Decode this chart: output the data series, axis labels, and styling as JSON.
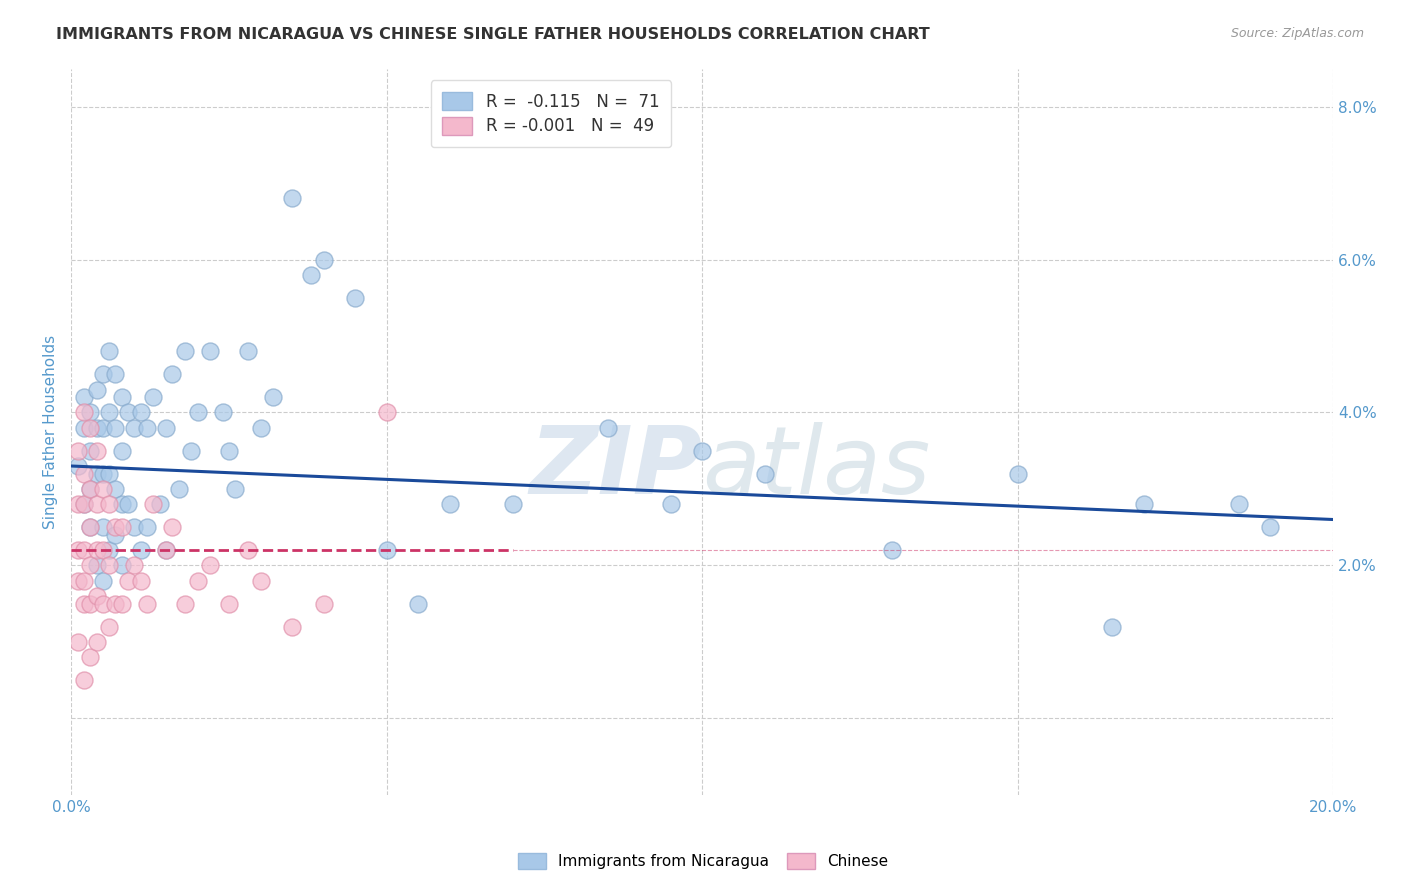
{
  "title": "IMMIGRANTS FROM NICARAGUA VS CHINESE SINGLE FATHER HOUSEHOLDS CORRELATION CHART",
  "source": "Source: ZipAtlas.com",
  "xlabel": "",
  "ylabel": "Single Father Households",
  "xlim": [
    0.0,
    0.2
  ],
  "ylim": [
    -0.01,
    0.085
  ],
  "blue_label": "Immigrants from Nicaragua",
  "pink_label": "Chinese",
  "blue_R": -0.115,
  "blue_N": 71,
  "pink_R": -0.001,
  "pink_N": 49,
  "blue_color": "#a8c8e8",
  "pink_color": "#f4b8cc",
  "blue_edge_color": "#88aacc",
  "pink_edge_color": "#e090aa",
  "blue_line_color": "#1a4a9a",
  "pink_line_color": "#cc3366",
  "background_color": "#ffffff",
  "grid_color": "#cccccc",
  "title_color": "#333333",
  "axis_label_color": "#5599cc",
  "tick_color": "#5599cc",
  "watermark_color": "#c8d8e8",
  "blue_x": [
    0.001,
    0.002,
    0.002,
    0.002,
    0.003,
    0.003,
    0.003,
    0.003,
    0.004,
    0.004,
    0.004,
    0.004,
    0.005,
    0.005,
    0.005,
    0.005,
    0.005,
    0.006,
    0.006,
    0.006,
    0.006,
    0.007,
    0.007,
    0.007,
    0.007,
    0.008,
    0.008,
    0.008,
    0.008,
    0.009,
    0.009,
    0.01,
    0.01,
    0.011,
    0.011,
    0.012,
    0.012,
    0.013,
    0.014,
    0.015,
    0.015,
    0.016,
    0.017,
    0.018,
    0.019,
    0.02,
    0.022,
    0.024,
    0.025,
    0.026,
    0.028,
    0.03,
    0.032,
    0.035,
    0.038,
    0.04,
    0.045,
    0.05,
    0.055,
    0.06,
    0.07,
    0.085,
    0.095,
    0.1,
    0.11,
    0.13,
    0.15,
    0.165,
    0.17,
    0.185,
    0.19
  ],
  "blue_y": [
    0.033,
    0.038,
    0.042,
    0.028,
    0.035,
    0.04,
    0.03,
    0.025,
    0.043,
    0.038,
    0.032,
    0.02,
    0.045,
    0.038,
    0.032,
    0.025,
    0.018,
    0.048,
    0.04,
    0.032,
    0.022,
    0.045,
    0.038,
    0.03,
    0.024,
    0.042,
    0.035,
    0.028,
    0.02,
    0.04,
    0.028,
    0.038,
    0.025,
    0.04,
    0.022,
    0.038,
    0.025,
    0.042,
    0.028,
    0.038,
    0.022,
    0.045,
    0.03,
    0.048,
    0.035,
    0.04,
    0.048,
    0.04,
    0.035,
    0.03,
    0.048,
    0.038,
    0.042,
    0.068,
    0.058,
    0.06,
    0.055,
    0.022,
    0.015,
    0.028,
    0.028,
    0.038,
    0.028,
    0.035,
    0.032,
    0.022,
    0.032,
    0.012,
    0.028,
    0.028,
    0.025
  ],
  "pink_x": [
    0.001,
    0.001,
    0.001,
    0.001,
    0.001,
    0.002,
    0.002,
    0.002,
    0.002,
    0.002,
    0.002,
    0.002,
    0.003,
    0.003,
    0.003,
    0.003,
    0.003,
    0.003,
    0.004,
    0.004,
    0.004,
    0.004,
    0.004,
    0.005,
    0.005,
    0.005,
    0.006,
    0.006,
    0.006,
    0.007,
    0.007,
    0.008,
    0.008,
    0.009,
    0.01,
    0.011,
    0.012,
    0.013,
    0.015,
    0.016,
    0.018,
    0.02,
    0.022,
    0.025,
    0.028,
    0.03,
    0.035,
    0.04,
    0.05
  ],
  "pink_y": [
    0.035,
    0.028,
    0.022,
    0.018,
    0.01,
    0.04,
    0.032,
    0.028,
    0.022,
    0.018,
    0.015,
    0.005,
    0.038,
    0.03,
    0.025,
    0.02,
    0.015,
    0.008,
    0.035,
    0.028,
    0.022,
    0.016,
    0.01,
    0.03,
    0.022,
    0.015,
    0.028,
    0.02,
    0.012,
    0.025,
    0.015,
    0.025,
    0.015,
    0.018,
    0.02,
    0.018,
    0.015,
    0.028,
    0.022,
    0.025,
    0.015,
    0.018,
    0.02,
    0.015,
    0.022,
    0.018,
    0.012,
    0.015,
    0.04
  ],
  "blue_line_x0": 0.0,
  "blue_line_y0": 0.033,
  "blue_line_x1": 0.2,
  "blue_line_y1": 0.026,
  "pink_line_x0": 0.0,
  "pink_line_y0": 0.022,
  "pink_line_x1": 0.07,
  "pink_line_y1": 0.022
}
